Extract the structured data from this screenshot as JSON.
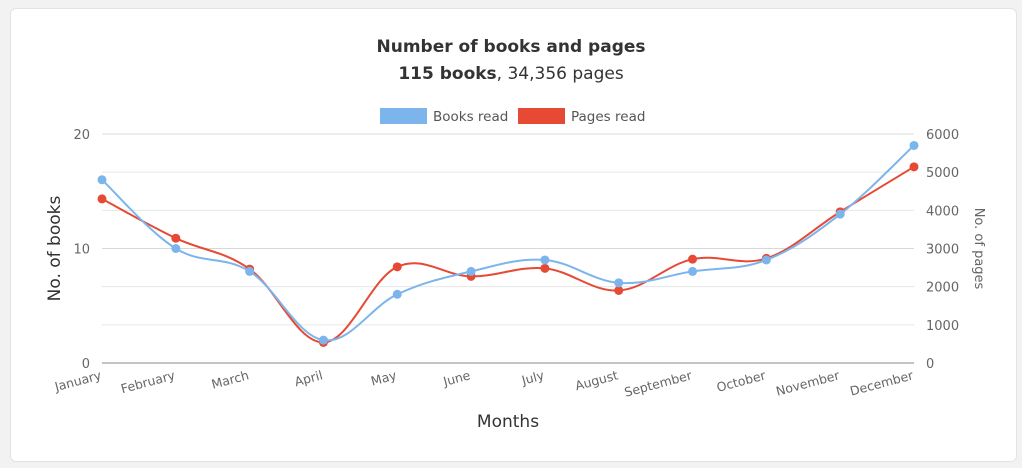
{
  "chart_data": {
    "type": "line",
    "title": "Number of books and pages",
    "subtitle": {
      "bold": "115 books",
      "rest": ", 34,356 pages"
    },
    "categories": [
      "January",
      "February",
      "March",
      "April",
      "May",
      "June",
      "July",
      "August",
      "September",
      "October",
      "November",
      "December"
    ],
    "series": [
      {
        "name": "Books read",
        "axis": "left",
        "color": "#7cb5ec",
        "values": [
          16,
          10,
          8,
          2,
          6,
          8,
          9,
          7,
          8,
          9,
          13,
          19
        ]
      },
      {
        "name": "Pages read",
        "axis": "right",
        "color": "#e64a35",
        "values": [
          4300,
          3270,
          2460,
          540,
          2520,
          2270,
          2480,
          1900,
          2720,
          2740,
          3960,
          5140
        ]
      }
    ],
    "xlabel": "Months",
    "ylabel_left": "No. of books",
    "ylabel_right": "No. of pages",
    "ylim_left": [
      0,
      20
    ],
    "yticks_left": [
      0,
      10,
      20
    ],
    "ylim_right": [
      0,
      6000
    ],
    "yticks_right": [
      0,
      1000,
      2000,
      3000,
      4000,
      5000,
      6000
    ],
    "grid": true,
    "legend_position": "top-center"
  }
}
